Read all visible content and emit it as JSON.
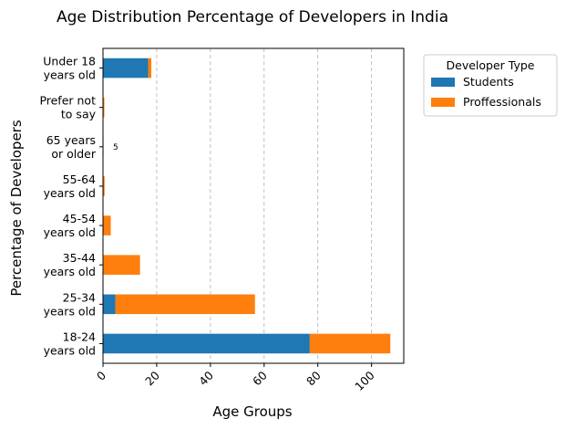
{
  "chart_data": {
    "type": "bar",
    "orientation": "horizontal",
    "stacked": true,
    "title": "Age Distribution Percentage of Developers in India",
    "xlabel": "Age Groups",
    "ylabel": "Percentage of Developers",
    "categories": [
      [
        "18-24",
        "years old"
      ],
      [
        "25-34",
        "years old"
      ],
      [
        "35-44",
        "years old"
      ],
      [
        "45-54",
        "years old"
      ],
      [
        "55-64",
        "years old"
      ],
      [
        "65 years",
        "or older"
      ],
      [
        "Prefer not",
        "to say"
      ],
      [
        "Under 18",
        "years old"
      ]
    ],
    "series": [
      {
        "name": "Students",
        "color": "#1f77b4",
        "values": [
          77,
          4.6,
          0.2,
          0.1,
          0.1,
          0.0,
          0.1,
          16.8
        ]
      },
      {
        "name": "Proffessionals",
        "color": "#ff7f0e",
        "values": [
          30,
          52,
          13.6,
          2.8,
          0.5,
          0.1,
          0.4,
          1.2
        ]
      }
    ],
    "xlim": [
      0,
      112
    ],
    "xticks": [
      "0",
      "20",
      "40",
      "60",
      "80",
      "100"
    ],
    "xtick_values": [
      0,
      20,
      40,
      60,
      80,
      100
    ],
    "grid": "x-dashed",
    "legend": {
      "title": "Developer Type",
      "placement": "outside upper-right"
    },
    "annotations": [
      {
        "category_index": 5,
        "text": "5"
      }
    ]
  }
}
